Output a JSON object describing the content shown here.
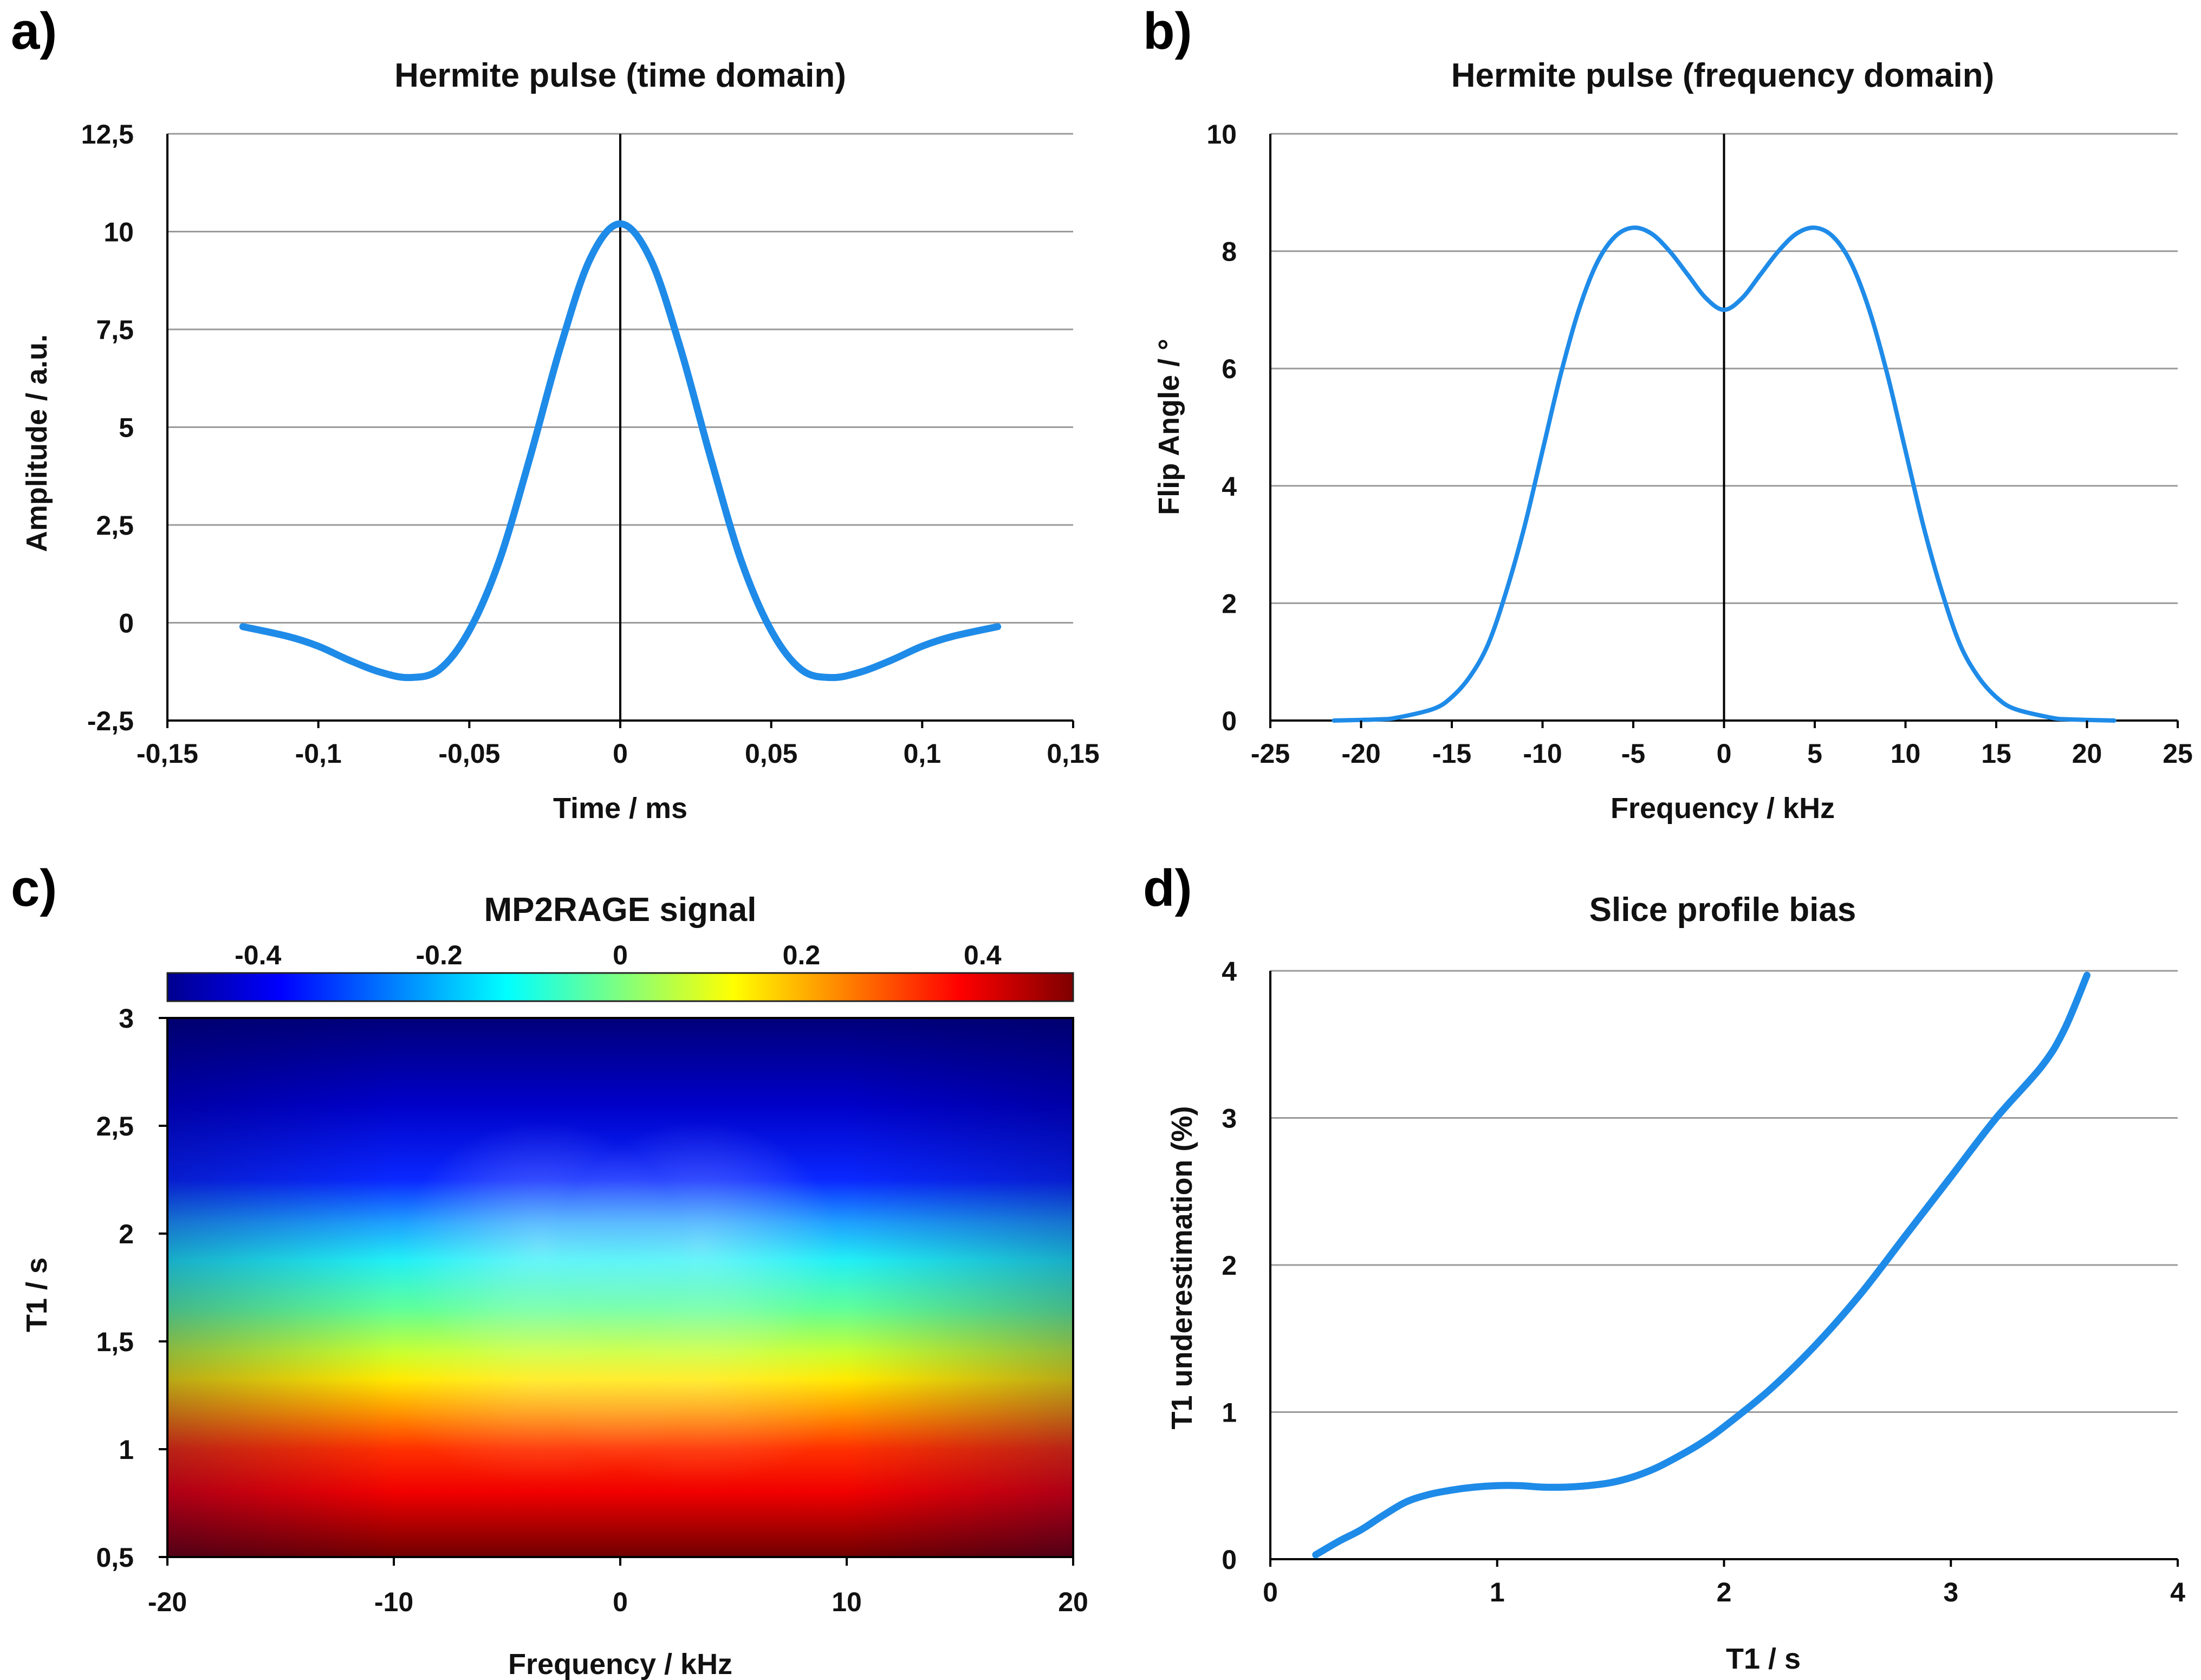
{
  "panels": {
    "a": {
      "label": "a)"
    },
    "b": {
      "label": "b)"
    },
    "c": {
      "label": "c)"
    },
    "d": {
      "label": "d)"
    }
  },
  "chart_data": [
    {
      "id": "a",
      "type": "line",
      "title": "Hermite pulse (time domain)",
      "xlabel": "Time / ms",
      "ylabel": "Amplitude / a.u.",
      "xlim": [
        -0.15,
        0.15
      ],
      "ylim": [
        -2.5,
        12.5
      ],
      "xticks": [
        -0.15,
        -0.1,
        -0.05,
        0,
        0.05,
        0.1,
        0.15
      ],
      "xtick_labels": [
        "-0,15",
        "-0,1",
        "-0,05",
        "0",
        "0,05",
        "0,1",
        "0,15"
      ],
      "yticks": [
        -2.5,
        0,
        2.5,
        5,
        7.5,
        10,
        12.5
      ],
      "ytick_labels": [
        "-2,5",
        "0",
        "2,5",
        "5",
        "7,5",
        "10",
        "12,5"
      ],
      "grid": "horizontal",
      "series": [
        {
          "name": "Hermite pulse",
          "x": [
            -0.125,
            -0.11,
            -0.1,
            -0.09,
            -0.08,
            -0.07,
            -0.06,
            -0.05,
            -0.04,
            -0.03,
            -0.02,
            -0.01,
            0,
            0.01,
            0.02,
            0.03,
            0.04,
            0.05,
            0.06,
            0.07,
            0.08,
            0.09,
            0.1,
            0.11,
            0.125
          ],
          "y": [
            -0.1,
            -0.35,
            -0.6,
            -0.95,
            -1.25,
            -1.4,
            -1.2,
            -0.2,
            1.6,
            4.2,
            7.0,
            9.3,
            10.2,
            9.3,
            7.0,
            4.2,
            1.6,
            -0.2,
            -1.2,
            -1.4,
            -1.25,
            -0.95,
            -0.6,
            -0.35,
            -0.1
          ]
        }
      ]
    },
    {
      "id": "b",
      "type": "line",
      "title": "Hermite pulse (frequency domain)",
      "xlabel": "Frequency / kHz",
      "ylabel": "Flip Angle / °",
      "xlim": [
        -25,
        25
      ],
      "ylim": [
        0,
        10
      ],
      "xticks": [
        -25,
        -20,
        -15,
        -10,
        -5,
        0,
        5,
        10,
        15,
        20,
        25
      ],
      "xtick_labels": [
        "-25",
        "-20",
        "-15",
        "-10",
        "-5",
        "0",
        "5",
        "10",
        "15",
        "20",
        "25"
      ],
      "yticks": [
        0,
        2,
        4,
        6,
        8,
        10
      ],
      "ytick_labels": [
        "0",
        "2",
        "4",
        "6",
        "8",
        "10"
      ],
      "grid": "horizontal",
      "series": [
        {
          "name": "Flip angle profile",
          "x": [
            -21.5,
            -19,
            -18,
            -16,
            -15,
            -14,
            -13,
            -12,
            -11,
            -10,
            -9,
            -8,
            -7,
            -6,
            -5,
            -4,
            -3,
            -2,
            -1,
            0,
            1,
            2,
            3,
            4,
            5,
            6,
            7,
            8,
            9,
            10,
            11,
            12,
            13,
            14,
            15,
            16,
            18,
            19,
            21.5
          ],
          "y": [
            0,
            0.02,
            0.05,
            0.2,
            0.4,
            0.75,
            1.3,
            2.2,
            3.3,
            4.6,
            5.9,
            7.0,
            7.8,
            8.25,
            8.4,
            8.3,
            8.0,
            7.6,
            7.2,
            7.0,
            7.2,
            7.6,
            8.0,
            8.3,
            8.4,
            8.25,
            7.8,
            7.0,
            5.9,
            4.6,
            3.3,
            2.2,
            1.3,
            0.75,
            0.4,
            0.2,
            0.05,
            0.02,
            0
          ]
        }
      ]
    },
    {
      "id": "c",
      "type": "heatmap",
      "title": "MP2RAGE signal",
      "xlabel": "Frequency / kHz",
      "ylabel": "T1 / s",
      "xlim": [
        -20,
        20
      ],
      "ylim": [
        0.5,
        3
      ],
      "xticks": [
        -20,
        -10,
        0,
        10,
        20
      ],
      "xtick_labels": [
        "-20",
        "-10",
        "0",
        "10",
        "20"
      ],
      "yticks": [
        0.5,
        1,
        1.5,
        2,
        2.5,
        3
      ],
      "ytick_labels": [
        "0,5",
        "1",
        "1,5",
        "2",
        "2,5",
        "3"
      ],
      "colorbar": {
        "range": [
          -0.5,
          0.5
        ],
        "ticks": [
          -0.4,
          -0.2,
          0,
          0.2,
          0.4
        ],
        "tick_labels": [
          "-0.4",
          "-0.2",
          "0",
          "0.2",
          "0.4"
        ],
        "colormap": "jet"
      },
      "description_values": {
        "signal_at_T1_0_5": 0.5,
        "signal_at_T1_3": -0.5,
        "zero_crossing_T1_center": 1.8,
        "zero_crossing_T1_edges": 1.65
      }
    },
    {
      "id": "d",
      "type": "line",
      "title": "Slice profile bias",
      "xlabel": "T1 / s",
      "ylabel": "T1 underestimation (%)",
      "xlim": [
        0,
        4
      ],
      "ylim": [
        0,
        4
      ],
      "xticks": [
        0,
        1,
        2,
        3,
        4
      ],
      "xtick_labels": [
        "0",
        "1",
        "2",
        "3",
        "4"
      ],
      "yticks": [
        0,
        1,
        2,
        3,
        4
      ],
      "ytick_labels": [
        "0",
        "1",
        "2",
        "3",
        "4"
      ],
      "grid": "horizontal",
      "series": [
        {
          "name": "T1 underestimation",
          "x": [
            0.2,
            0.3,
            0.4,
            0.5,
            0.6,
            0.7,
            0.8,
            0.9,
            1.0,
            1.1,
            1.2,
            1.3,
            1.4,
            1.5,
            1.6,
            1.7,
            1.8,
            1.9,
            2.0,
            2.2,
            2.4,
            2.6,
            2.8,
            3.0,
            3.2,
            3.4,
            3.5,
            3.6
          ],
          "y": [
            0.03,
            0.12,
            0.2,
            0.3,
            0.39,
            0.44,
            0.47,
            0.49,
            0.5,
            0.5,
            0.49,
            0.49,
            0.5,
            0.52,
            0.56,
            0.62,
            0.7,
            0.79,
            0.9,
            1.15,
            1.45,
            1.8,
            2.2,
            2.6,
            3.0,
            3.35,
            3.6,
            3.97
          ]
        }
      ]
    }
  ]
}
